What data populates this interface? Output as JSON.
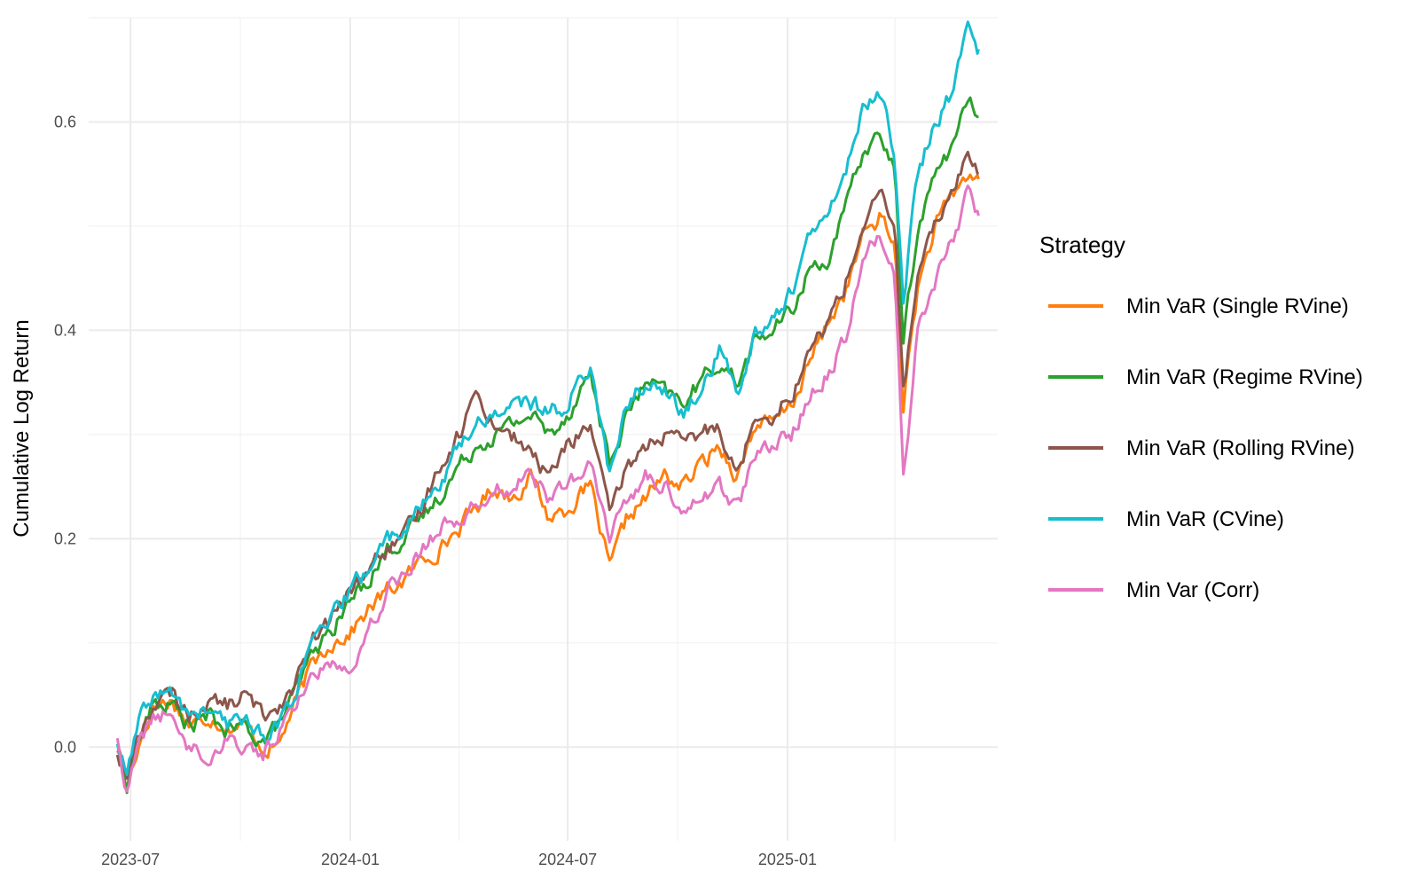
{
  "chart_data": {
    "type": "line",
    "title": "",
    "xlabel": "",
    "ylabel": "Cumulative Log Return",
    "x_ticks": [
      "2023-07",
      "2024-01",
      "2024-07",
      "2025-01"
    ],
    "y_ticks": [
      "0.0",
      "0.2",
      "0.4",
      "0.6"
    ],
    "xlim": [
      "2023-05-27",
      "2025-06-26"
    ],
    "ylim": [
      -0.09,
      0.7
    ],
    "grid": true,
    "legend": {
      "title": "Strategy",
      "position": "right"
    },
    "series": [
      {
        "name": "Min VaR (Single RVine)",
        "color": "#ff7f0e",
        "points": [
          [
            "2023-06-20",
            0.0
          ],
          [
            "2023-06-28",
            -0.04
          ],
          [
            "2023-07-07",
            0.0
          ],
          [
            "2023-07-20",
            0.04
          ],
          [
            "2023-08-05",
            0.045
          ],
          [
            "2023-08-20",
            0.02
          ],
          [
            "2023-09-05",
            0.03
          ],
          [
            "2023-09-20",
            0.02
          ],
          [
            "2023-10-05",
            0.02
          ],
          [
            "2023-10-20",
            0.0
          ],
          [
            "2023-11-01",
            0.0
          ],
          [
            "2023-11-15",
            0.04
          ],
          [
            "2023-12-01",
            0.08
          ],
          [
            "2023-12-15",
            0.1
          ],
          [
            "2024-01-01",
            0.11
          ],
          [
            "2024-01-15",
            0.13
          ],
          [
            "2024-02-01",
            0.15
          ],
          [
            "2024-02-15",
            0.16
          ],
          [
            "2024-03-01",
            0.18
          ],
          [
            "2024-03-15",
            0.19
          ],
          [
            "2024-04-01",
            0.21
          ],
          [
            "2024-04-15",
            0.23
          ],
          [
            "2024-05-01",
            0.25
          ],
          [
            "2024-05-15",
            0.24
          ],
          [
            "2024-06-01",
            0.26
          ],
          [
            "2024-06-15",
            0.22
          ],
          [
            "2024-07-01",
            0.23
          ],
          [
            "2024-07-20",
            0.25
          ],
          [
            "2024-08-05",
            0.17
          ],
          [
            "2024-08-20",
            0.22
          ],
          [
            "2024-09-05",
            0.24
          ],
          [
            "2024-09-20",
            0.26
          ],
          [
            "2024-10-05",
            0.25
          ],
          [
            "2024-10-20",
            0.27
          ],
          [
            "2024-11-05",
            0.29
          ],
          [
            "2024-11-20",
            0.26
          ],
          [
            "2024-12-05",
            0.31
          ],
          [
            "2024-12-20",
            0.31
          ],
          [
            "2025-01-05",
            0.33
          ],
          [
            "2025-01-20",
            0.37
          ],
          [
            "2025-02-05",
            0.41
          ],
          [
            "2025-02-20",
            0.44
          ],
          [
            "2025-03-05",
            0.49
          ],
          [
            "2025-03-20",
            0.51
          ],
          [
            "2025-04-01",
            0.48
          ],
          [
            "2025-04-08",
            0.33
          ],
          [
            "2025-04-20",
            0.44
          ],
          [
            "2025-05-05",
            0.5
          ],
          [
            "2025-05-20",
            0.53
          ],
          [
            "2025-06-01",
            0.55
          ],
          [
            "2025-06-10",
            0.545
          ]
        ]
      },
      {
        "name": "Min VaR (Regime RVine)",
        "color": "#2ca02c",
        "points": [
          [
            "2023-06-20",
            0.0
          ],
          [
            "2023-06-28",
            -0.035
          ],
          [
            "2023-07-07",
            0.005
          ],
          [
            "2023-07-20",
            0.04
          ],
          [
            "2023-08-05",
            0.04
          ],
          [
            "2023-08-20",
            0.02
          ],
          [
            "2023-09-05",
            0.03
          ],
          [
            "2023-09-20",
            0.015
          ],
          [
            "2023-10-05",
            0.02
          ],
          [
            "2023-10-20",
            0.005
          ],
          [
            "2023-11-01",
            0.02
          ],
          [
            "2023-11-15",
            0.05
          ],
          [
            "2023-12-01",
            0.09
          ],
          [
            "2023-12-15",
            0.11
          ],
          [
            "2024-01-01",
            0.14
          ],
          [
            "2024-01-15",
            0.16
          ],
          [
            "2024-02-01",
            0.19
          ],
          [
            "2024-02-15",
            0.2
          ],
          [
            "2024-03-01",
            0.22
          ],
          [
            "2024-03-15",
            0.24
          ],
          [
            "2024-04-01",
            0.27
          ],
          [
            "2024-04-15",
            0.29
          ],
          [
            "2024-05-01",
            0.3
          ],
          [
            "2024-05-15",
            0.31
          ],
          [
            "2024-06-01",
            0.32
          ],
          [
            "2024-06-15",
            0.3
          ],
          [
            "2024-07-01",
            0.32
          ],
          [
            "2024-07-20",
            0.36
          ],
          [
            "2024-08-05",
            0.27
          ],
          [
            "2024-08-20",
            0.32
          ],
          [
            "2024-09-05",
            0.35
          ],
          [
            "2024-09-20",
            0.34
          ],
          [
            "2024-10-05",
            0.33
          ],
          [
            "2024-10-20",
            0.35
          ],
          [
            "2024-11-05",
            0.37
          ],
          [
            "2024-11-20",
            0.35
          ],
          [
            "2024-12-05",
            0.39
          ],
          [
            "2024-12-20",
            0.4
          ],
          [
            "2025-01-05",
            0.42
          ],
          [
            "2025-01-20",
            0.46
          ],
          [
            "2025-02-05",
            0.47
          ],
          [
            "2025-02-20",
            0.52
          ],
          [
            "2025-03-05",
            0.57
          ],
          [
            "2025-03-20",
            0.59
          ],
          [
            "2025-04-01",
            0.55
          ],
          [
            "2025-04-08",
            0.39
          ],
          [
            "2025-04-20",
            0.5
          ],
          [
            "2025-05-05",
            0.55
          ],
          [
            "2025-05-20",
            0.58
          ],
          [
            "2025-06-01",
            0.62
          ],
          [
            "2025-06-10",
            0.605
          ]
        ]
      },
      {
        "name": "Min VaR (Rolling RVine)",
        "color": "#8c564b",
        "points": [
          [
            "2023-06-20",
            -0.005
          ],
          [
            "2023-06-28",
            -0.03
          ],
          [
            "2023-07-07",
            0.01
          ],
          [
            "2023-07-20",
            0.04
          ],
          [
            "2023-08-05",
            0.05
          ],
          [
            "2023-08-20",
            0.03
          ],
          [
            "2023-09-05",
            0.045
          ],
          [
            "2023-09-20",
            0.04
          ],
          [
            "2023-10-05",
            0.05
          ],
          [
            "2023-10-20",
            0.03
          ],
          [
            "2023-11-01",
            0.04
          ],
          [
            "2023-11-15",
            0.06
          ],
          [
            "2023-12-01",
            0.1
          ],
          [
            "2023-12-15",
            0.12
          ],
          [
            "2024-01-01",
            0.15
          ],
          [
            "2024-01-15",
            0.17
          ],
          [
            "2024-02-01",
            0.19
          ],
          [
            "2024-02-15",
            0.2
          ],
          [
            "2024-03-01",
            0.23
          ],
          [
            "2024-03-15",
            0.27
          ],
          [
            "2024-04-01",
            0.3
          ],
          [
            "2024-04-15",
            0.34
          ],
          [
            "2024-05-01",
            0.31
          ],
          [
            "2024-05-15",
            0.3
          ],
          [
            "2024-06-01",
            0.28
          ],
          [
            "2024-06-15",
            0.26
          ],
          [
            "2024-07-01",
            0.29
          ],
          [
            "2024-07-20",
            0.31
          ],
          [
            "2024-08-05",
            0.22
          ],
          [
            "2024-08-20",
            0.27
          ],
          [
            "2024-09-05",
            0.29
          ],
          [
            "2024-09-20",
            0.3
          ],
          [
            "2024-10-05",
            0.29
          ],
          [
            "2024-10-20",
            0.3
          ],
          [
            "2024-11-05",
            0.31
          ],
          [
            "2024-11-20",
            0.26
          ],
          [
            "2024-12-05",
            0.32
          ],
          [
            "2024-12-20",
            0.32
          ],
          [
            "2025-01-05",
            0.34
          ],
          [
            "2025-01-20",
            0.38
          ],
          [
            "2025-02-05",
            0.41
          ],
          [
            "2025-02-20",
            0.45
          ],
          [
            "2025-03-05",
            0.5
          ],
          [
            "2025-03-20",
            0.53
          ],
          [
            "2025-04-01",
            0.5
          ],
          [
            "2025-04-08",
            0.34
          ],
          [
            "2025-04-20",
            0.45
          ],
          [
            "2025-05-05",
            0.5
          ],
          [
            "2025-05-20",
            0.54
          ],
          [
            "2025-06-01",
            0.57
          ],
          [
            "2025-06-10",
            0.55
          ]
        ]
      },
      {
        "name": "Min VaR (CVine)",
        "color": "#17becf",
        "points": [
          [
            "2023-06-20",
            0.005
          ],
          [
            "2023-06-28",
            -0.03
          ],
          [
            "2023-07-07",
            0.02
          ],
          [
            "2023-07-20",
            0.05
          ],
          [
            "2023-08-05",
            0.05
          ],
          [
            "2023-08-20",
            0.03
          ],
          [
            "2023-09-05",
            0.035
          ],
          [
            "2023-09-20",
            0.02
          ],
          [
            "2023-10-05",
            0.03
          ],
          [
            "2023-10-20",
            0.01
          ],
          [
            "2023-11-01",
            0.02
          ],
          [
            "2023-11-15",
            0.05
          ],
          [
            "2023-12-01",
            0.1
          ],
          [
            "2023-12-15",
            0.12
          ],
          [
            "2024-01-01",
            0.15
          ],
          [
            "2024-01-15",
            0.17
          ],
          [
            "2024-02-01",
            0.2
          ],
          [
            "2024-02-15",
            0.21
          ],
          [
            "2024-03-01",
            0.23
          ],
          [
            "2024-03-15",
            0.25
          ],
          [
            "2024-04-01",
            0.29
          ],
          [
            "2024-04-15",
            0.31
          ],
          [
            "2024-05-01",
            0.32
          ],
          [
            "2024-05-15",
            0.33
          ],
          [
            "2024-06-01",
            0.33
          ],
          [
            "2024-06-15",
            0.32
          ],
          [
            "2024-07-01",
            0.33
          ],
          [
            "2024-07-20",
            0.37
          ],
          [
            "2024-08-05",
            0.26
          ],
          [
            "2024-08-20",
            0.33
          ],
          [
            "2024-09-05",
            0.35
          ],
          [
            "2024-09-20",
            0.34
          ],
          [
            "2024-10-05",
            0.32
          ],
          [
            "2024-10-20",
            0.34
          ],
          [
            "2024-11-05",
            0.38
          ],
          [
            "2024-11-20",
            0.34
          ],
          [
            "2024-12-05",
            0.4
          ],
          [
            "2024-12-20",
            0.41
          ],
          [
            "2025-01-05",
            0.44
          ],
          [
            "2025-01-20",
            0.49
          ],
          [
            "2025-02-05",
            0.51
          ],
          [
            "2025-02-20",
            0.56
          ],
          [
            "2025-03-05",
            0.61
          ],
          [
            "2025-03-20",
            0.63
          ],
          [
            "2025-04-01",
            0.57
          ],
          [
            "2025-04-08",
            0.43
          ],
          [
            "2025-04-20",
            0.55
          ],
          [
            "2025-05-05",
            0.6
          ],
          [
            "2025-05-20",
            0.63
          ],
          [
            "2025-06-01",
            0.69
          ],
          [
            "2025-06-10",
            0.67
          ]
        ]
      },
      {
        "name": "Min Var (Corr)",
        "color": "#e377c2",
        "points": [
          [
            "2023-06-20",
            0.01
          ],
          [
            "2023-06-28",
            -0.045
          ],
          [
            "2023-07-07",
            0.0
          ],
          [
            "2023-07-20",
            0.03
          ],
          [
            "2023-08-05",
            0.03
          ],
          [
            "2023-08-20",
            0.0
          ],
          [
            "2023-09-05",
            -0.01
          ],
          [
            "2023-09-20",
            0.01
          ],
          [
            "2023-10-05",
            0.0
          ],
          [
            "2023-10-20",
            -0.005
          ],
          [
            "2023-11-01",
            0.01
          ],
          [
            "2023-11-15",
            0.04
          ],
          [
            "2023-12-01",
            0.07
          ],
          [
            "2023-12-15",
            0.08
          ],
          [
            "2024-01-01",
            0.08
          ],
          [
            "2024-01-15",
            0.11
          ],
          [
            "2024-02-01",
            0.15
          ],
          [
            "2024-02-15",
            0.17
          ],
          [
            "2024-03-01",
            0.19
          ],
          [
            "2024-03-15",
            0.21
          ],
          [
            "2024-04-01",
            0.22
          ],
          [
            "2024-04-15",
            0.23
          ],
          [
            "2024-05-01",
            0.25
          ],
          [
            "2024-05-15",
            0.25
          ],
          [
            "2024-06-01",
            0.26
          ],
          [
            "2024-06-15",
            0.24
          ],
          [
            "2024-07-01",
            0.25
          ],
          [
            "2024-07-20",
            0.27
          ],
          [
            "2024-08-05",
            0.2
          ],
          [
            "2024-08-20",
            0.24
          ],
          [
            "2024-09-05",
            0.26
          ],
          [
            "2024-09-20",
            0.25
          ],
          [
            "2024-10-05",
            0.23
          ],
          [
            "2024-10-20",
            0.24
          ],
          [
            "2024-11-05",
            0.25
          ],
          [
            "2024-11-20",
            0.23
          ],
          [
            "2024-12-05",
            0.28
          ],
          [
            "2024-12-20",
            0.29
          ],
          [
            "2025-01-05",
            0.3
          ],
          [
            "2025-01-20",
            0.34
          ],
          [
            "2025-02-05",
            0.36
          ],
          [
            "2025-02-20",
            0.4
          ],
          [
            "2025-03-05",
            0.47
          ],
          [
            "2025-03-20",
            0.49
          ],
          [
            "2025-04-01",
            0.46
          ],
          [
            "2025-04-08",
            0.26
          ],
          [
            "2025-04-20",
            0.4
          ],
          [
            "2025-05-05",
            0.45
          ],
          [
            "2025-05-20",
            0.49
          ],
          [
            "2025-06-01",
            0.53
          ],
          [
            "2025-06-10",
            0.51
          ]
        ]
      }
    ]
  }
}
